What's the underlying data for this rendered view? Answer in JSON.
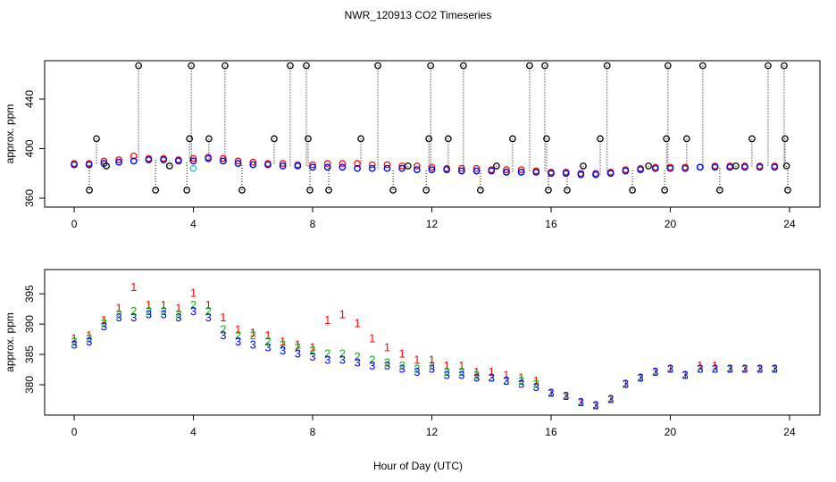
{
  "chart_data": [
    {
      "type": "scatter",
      "title": "NWR_120913  CO2 Timeseries",
      "ylabel": "approx. ppm",
      "xlim": [
        -0.99,
        25.02
      ],
      "xticks": [
        0,
        4,
        8,
        12,
        16,
        20,
        24
      ],
      "ylim": [
        352.8,
        471
      ],
      "yticks": [
        360,
        400,
        440
      ],
      "x": [
        0,
        0.5,
        1,
        1.5,
        2,
        2.5,
        3,
        3.5,
        4,
        4.5,
        5,
        5.5,
        6,
        6.5,
        7,
        7.5,
        8,
        8.5,
        9,
        9.5,
        10,
        10.5,
        11,
        11.5,
        12,
        12.5,
        13,
        13.5,
        14,
        14.5,
        15,
        15.5,
        16,
        16.5,
        17,
        17.5,
        18,
        18.5,
        19,
        19.5,
        20,
        20.5,
        21,
        21.5,
        22,
        22.5,
        23,
        23.5
      ],
      "series": [
        {
          "color": "#ff0000",
          "marker": "circle",
          "values": [
            388,
            388,
            390,
            391,
            394,
            392,
            392,
            391,
            392,
            393,
            392,
            390,
            389,
            388,
            388,
            387,
            387,
            388,
            388,
            388,
            387,
            387,
            386,
            386,
            385,
            384,
            384,
            384,
            383,
            383,
            383,
            382,
            381,
            381,
            380,
            380,
            381,
            383,
            384,
            385,
            385,
            385,
            385,
            386,
            386,
            386,
            386,
            386
          ]
        },
        {
          "color": "#00cccc",
          "marker": "circle",
          "values": [
            387,
            387,
            388,
            389,
            390,
            391,
            391,
            390,
            384,
            392,
            390,
            388,
            387,
            387,
            386,
            386,
            385,
            385,
            385,
            384,
            384,
            384,
            384,
            383,
            383,
            383,
            382,
            382,
            382,
            381,
            381,
            381,
            380,
            380,
            379,
            379,
            380,
            382,
            383,
            384,
            384,
            384,
            385,
            385,
            385,
            385,
            385,
            385
          ]
        },
        {
          "color": "#0000ff",
          "marker": "circle",
          "values": [
            387,
            387,
            388,
            389,
            390,
            391,
            391,
            390,
            390,
            392,
            390,
            388,
            387,
            387,
            386,
            386,
            385,
            385,
            385,
            384,
            384,
            384,
            384,
            383,
            383,
            383,
            382,
            382,
            382,
            381,
            381,
            381,
            380,
            380,
            379,
            379,
            380,
            382,
            383,
            384,
            384,
            384,
            385,
            385,
            385,
            385,
            385,
            385
          ]
        },
        {
          "color": "#000000",
          "marker": "circle",
          "drop_lines": true,
          "x": [
            0.51,
            0.75,
            1.08,
            2.16,
            2.73,
            3.2,
            3.78,
            3.87,
            3.93,
            4.52,
            5.06,
            5.63,
            6.71,
            7.25,
            7.79,
            7.85,
            7.91,
            8.54,
            9.62,
            10.19,
            10.7,
            11.2,
            11.81,
            11.9,
            11.96,
            12.55,
            13.06,
            13.63,
            14.17,
            14.71,
            15.28,
            15.79,
            15.85,
            15.91,
            16.54,
            17.08,
            17.65,
            17.88,
            18.73,
            19.27,
            19.81,
            19.87,
            19.92,
            20.55,
            21.09,
            21.66,
            22.2,
            22.74,
            23.28,
            23.82,
            23.85,
            23.9,
            23.94
          ],
          "values": [
            366.5,
            408,
            386,
            467,
            366.5,
            386,
            366.5,
            408,
            467,
            408,
            467,
            366.5,
            408,
            467,
            467,
            408,
            366.5,
            366.5,
            408,
            467,
            366.5,
            386,
            366.5,
            408,
            467,
            408,
            467,
            366.5,
            386,
            408,
            467,
            467,
            408,
            366.5,
            366.5,
            386,
            408,
            467,
            366.5,
            386,
            366.5,
            408,
            467,
            408,
            467,
            366.5,
            386,
            408,
            467,
            467,
            408,
            386,
            366.5
          ]
        }
      ]
    },
    {
      "type": "scatter",
      "ylabel": "approx. ppm",
      "xlabel": "Hour of Day (UTC)",
      "xlim": [
        -0.99,
        25.02
      ],
      "xticks": [
        0,
        4,
        8,
        12,
        16,
        20,
        24
      ],
      "ylim": [
        375,
        399
      ],
      "yticks": [
        380,
        385,
        390,
        395
      ],
      "x": [
        0,
        0.5,
        1,
        1.5,
        2,
        2.5,
        3,
        3.5,
        4,
        4.5,
        5,
        5.5,
        6,
        6.5,
        7,
        7.5,
        8,
        8.5,
        9,
        9.5,
        10,
        10.5,
        11,
        11.5,
        12,
        12.5,
        13,
        13.5,
        14,
        14.5,
        15,
        15.5,
        16,
        16.5,
        17,
        17.5,
        18,
        18.5,
        19,
        19.5,
        20,
        20.5,
        21,
        21.5,
        22,
        22.5,
        23,
        23.5
      ],
      "series": [
        {
          "color": "#ff0000",
          "marker": "1",
          "values": [
            387.5,
            388,
            390.5,
            392.5,
            396,
            393,
            393,
            392.5,
            395,
            393,
            391,
            389,
            388.5,
            388,
            387,
            386.5,
            386,
            390.5,
            391.5,
            390,
            387.5,
            386,
            385,
            384,
            384,
            383,
            383,
            382,
            382,
            381.5,
            381,
            380.5,
            378.5,
            378,
            377,
            376.5,
            377.5,
            380,
            381,
            382,
            382.5,
            381.5,
            383,
            383,
            382.5,
            382.5,
            382.5,
            382.5
          ]
        },
        {
          "color": "#00bb00",
          "marker": "2",
          "values": [
            387,
            387.5,
            390,
            391.5,
            392,
            392,
            392,
            391.5,
            393,
            392,
            389,
            388,
            388,
            387,
            386.5,
            386,
            385.5,
            385,
            385,
            384.5,
            384,
            383.5,
            383,
            382.5,
            383,
            382,
            382,
            381.5,
            381,
            380.5,
            380.5,
            380,
            378.5,
            378,
            377,
            376.5,
            377.5,
            380,
            381,
            382,
            382.5,
            381.5,
            382.5,
            382.5,
            382.5,
            382.5,
            382.5,
            382.5
          ]
        },
        {
          "color": "#0000ff",
          "marker": "3",
          "values": [
            386.5,
            387,
            389.5,
            391,
            391,
            391.5,
            391.5,
            391,
            392,
            391,
            388,
            387,
            386.5,
            386,
            385.5,
            385,
            384.5,
            384,
            384,
            383.5,
            383,
            383,
            382.5,
            382,
            382.5,
            381.5,
            381.5,
            381,
            381,
            380.5,
            380,
            379.5,
            378.5,
            378,
            377,
            376.5,
            377.5,
            380,
            381,
            382,
            382.5,
            381.5,
            382.5,
            382.5,
            382.5,
            382.5,
            382.5,
            382.5
          ]
        }
      ]
    }
  ]
}
